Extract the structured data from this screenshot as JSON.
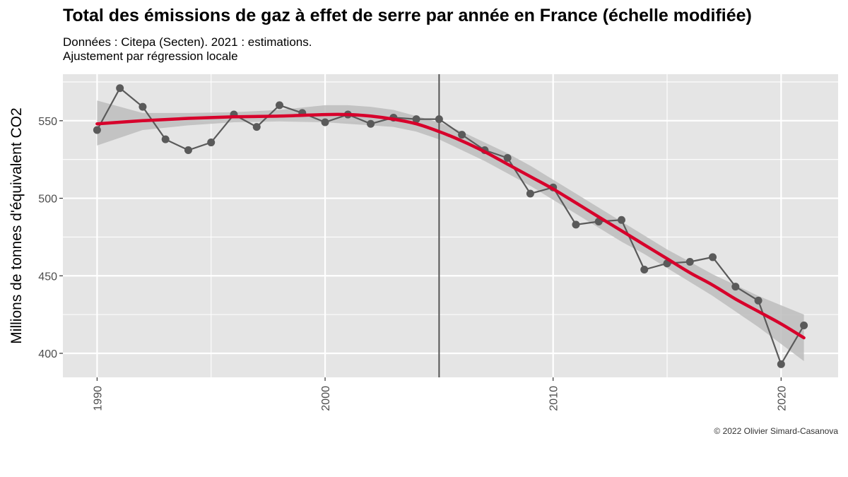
{
  "header": {
    "title": "Total des émissions de gaz à effet de serre par année en France (échelle modifiée)",
    "subtitle_line1": "Données : Citepa (Secten). 2021 : estimations.",
    "subtitle_line2": "Ajustement par régression locale"
  },
  "caption": "© 2022 Olivier Simard-Casanova",
  "chart_data": {
    "type": "line",
    "title": "Total des émissions de gaz à effet de serre par année en France (échelle modifiée)",
    "xlabel": "",
    "ylabel": "Millions de tonnes d'équivalent CO2",
    "xlim": [
      1988.5,
      2022.5
    ],
    "ylim": [
      384.5,
      580
    ],
    "x_ticks": [
      1990,
      2000,
      2010,
      2020
    ],
    "y_ticks": [
      400,
      450,
      500,
      550
    ],
    "grid": true,
    "vline_x": 2005,
    "series": [
      {
        "kind": "observed",
        "color": "#5a5a5a",
        "x": [
          1990,
          1991,
          1992,
          1993,
          1994,
          1995,
          1996,
          1997,
          1998,
          1999,
          2000,
          2001,
          2002,
          2003,
          2004,
          2005,
          2006,
          2007,
          2008,
          2009,
          2010,
          2011,
          2012,
          2013,
          2014,
          2015,
          2016,
          2017,
          2018,
          2019,
          2020,
          2021
        ],
        "values": [
          544,
          571,
          559,
          538,
          531,
          536,
          554,
          546,
          560,
          555,
          549,
          554,
          548,
          552,
          551,
          551,
          541,
          531,
          526,
          503,
          507,
          483,
          485,
          486,
          454,
          458,
          459,
          462,
          443,
          434,
          393,
          418
        ]
      },
      {
        "kind": "loess-fit",
        "color": "#d7002b",
        "x": [
          1990,
          1992,
          1994,
          1996,
          1998,
          2000,
          2001,
          2002,
          2003,
          2004,
          2005,
          2006,
          2007,
          2008,
          2009,
          2010,
          2011,
          2012,
          2013,
          2014,
          2015,
          2016,
          2017,
          2018,
          2019,
          2020,
          2021
        ],
        "values": [
          548,
          550,
          551.5,
          552.5,
          553,
          554,
          554,
          553,
          551,
          548,
          543,
          537,
          530,
          522,
          514,
          506,
          497,
          488,
          479,
          470,
          461,
          452,
          444,
          435,
          427,
          419,
          410
        ],
        "band_upper": [
          563,
          555,
          555,
          555.5,
          557,
          560,
          560,
          559,
          557,
          553,
          549,
          543,
          536,
          529,
          521,
          512,
          503,
          494,
          485,
          476,
          467,
          459,
          451,
          444,
          437,
          431,
          425
        ],
        "band_lower": [
          534,
          544,
          547,
          549,
          549.5,
          549,
          548,
          547,
          546,
          543,
          538,
          531,
          524,
          516,
          508,
          499,
          490,
          481,
          472,
          464,
          455,
          446,
          437,
          427,
          417,
          406,
          395
        ]
      }
    ],
    "colors": {
      "panel": "#e5e5e5",
      "grid": "#ffffff",
      "band": "#bdbdbd",
      "vline": "#555555"
    }
  }
}
